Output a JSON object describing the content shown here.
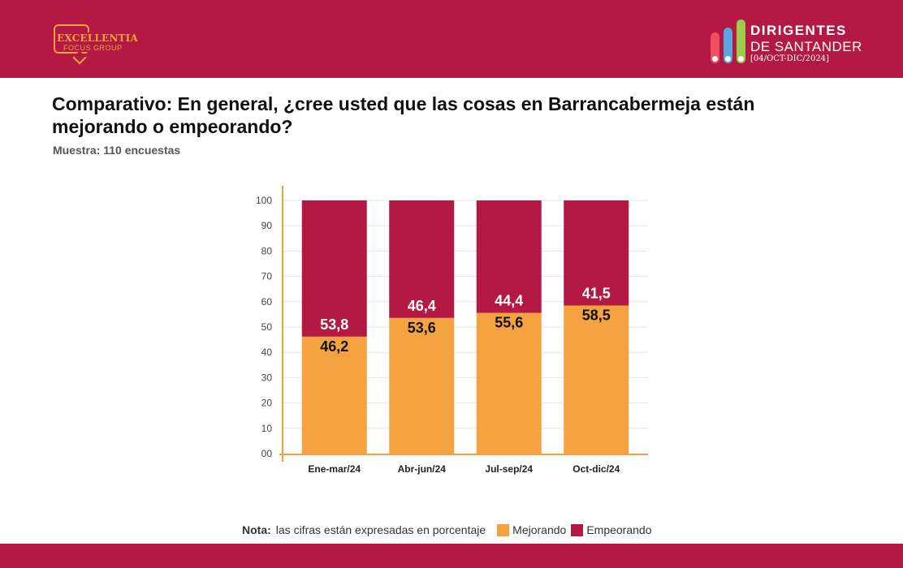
{
  "header": {
    "logo_left": {
      "line1": "EXCELLENTIA",
      "line2": "FOCUS GROUP"
    },
    "logo_right": {
      "line1": "DIRIGENTES",
      "line2": "DE SANTANDER",
      "line3": "[04/OCT-DIC/2024]"
    }
  },
  "colors": {
    "brand": "#b31942",
    "mejorando": "#f4a340",
    "empeorando": "#b31942",
    "axis": "#f0a13c"
  },
  "chart_data": {
    "type": "bar",
    "stacked": true,
    "title": "Comparativo: En general, ¿cree usted que las cosas en Barrancabermeja están mejorando o empeorando?",
    "subtitle": "Muestra: 110 encuestas",
    "categories": [
      "Ene-mar/24",
      "Abr-jun/24",
      "Jul-sep/24",
      "Oct-dic/24"
    ],
    "series": [
      {
        "name": "Mejorando",
        "values": [
          46.2,
          53.6,
          55.6,
          58.5
        ],
        "labels": [
          "46,2",
          "53,6",
          "55,6",
          "58,5"
        ],
        "color": "#f4a340"
      },
      {
        "name": "Empeorando",
        "values": [
          53.8,
          46.4,
          44.4,
          41.5
        ],
        "labels": [
          "53,8",
          "46,4",
          "44,4",
          "41,5"
        ],
        "color": "#b31942"
      }
    ],
    "yticks": [
      "00",
      "10",
      "20",
      "30",
      "40",
      "50",
      "60",
      "70",
      "80",
      "90",
      "100"
    ],
    "ylim": [
      0,
      100
    ],
    "grid": true,
    "legend_position": "bottom"
  },
  "note": {
    "label": "Nota:",
    "text": "las cifras están expresadas en porcentaje"
  }
}
